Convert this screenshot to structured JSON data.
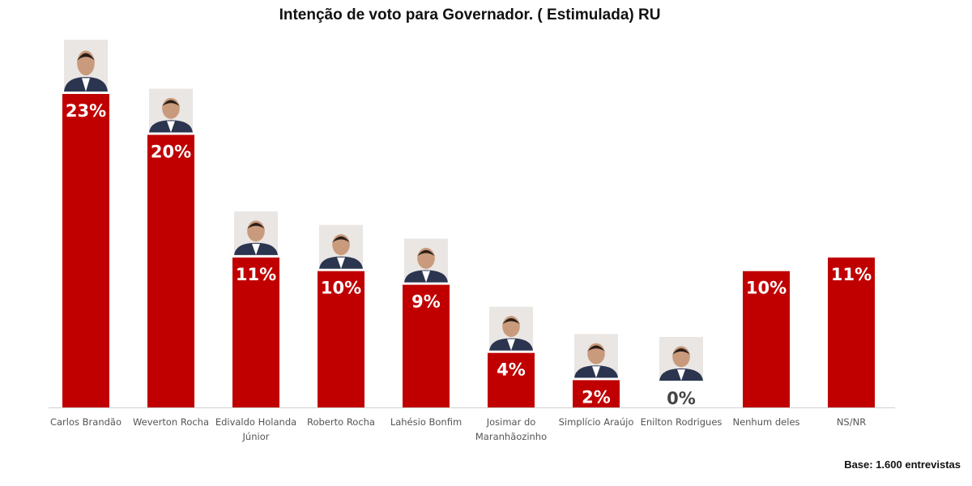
{
  "chart_data": {
    "type": "bar",
    "title": "Intenção de voto para Governador. ( Estimulada) RU",
    "categories": [
      [
        "Carlos Brandão"
      ],
      [
        "Weverton Rocha"
      ],
      [
        "Edivaldo Holanda",
        "Júnior"
      ],
      [
        "Roberto Rocha"
      ],
      [
        "Lahésio Bonfim"
      ],
      [
        "Josimar do",
        "Maranhãozinho"
      ],
      [
        "Simplício Araújo"
      ],
      [
        "Enilton Rodrigues"
      ],
      [
        "Nenhum deles"
      ],
      [
        "NS/NR"
      ]
    ],
    "values": [
      23,
      20,
      11,
      10,
      9,
      4,
      2,
      0,
      10,
      11
    ],
    "labels": [
      "23%",
      "20%",
      "11%",
      "10%",
      "9%",
      "4%",
      "2%",
      "0%",
      "10%",
      "11%"
    ],
    "has_photo": [
      true,
      true,
      true,
      true,
      true,
      true,
      true,
      true,
      false,
      false
    ],
    "xlabel": "",
    "ylabel": "",
    "ylim": [
      0,
      23
    ],
    "grid": false,
    "legend": "none",
    "bar_color": "#c00000",
    "label_color_inside": "#ffffff",
    "label_color_outside": "#444444"
  },
  "footer": {
    "base": "Base: 1.600 entrevistas"
  }
}
